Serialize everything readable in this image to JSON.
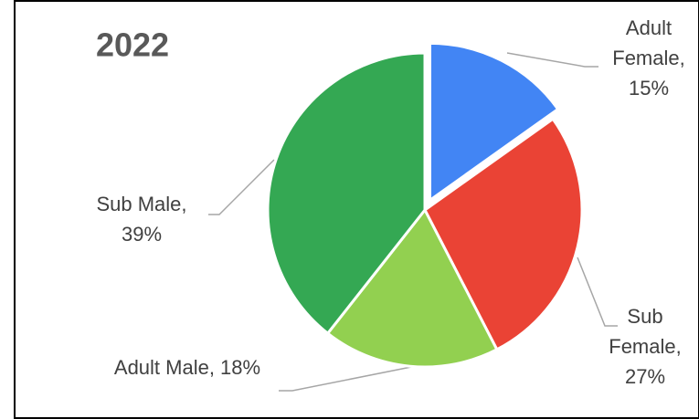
{
  "chart_data": {
    "type": "pie",
    "title": "2022",
    "categories": [
      "Adult Female",
      "Sub Female",
      "Adult Male",
      "Sub Male"
    ],
    "values": [
      15,
      27,
      18,
      39
    ],
    "value_labels": [
      "Adult Female, 15%",
      "Sub Female, 27%",
      "Adult Male, 18%",
      "Sub Male, 39%"
    ],
    "colors": [
      "#4285f4",
      "#ea4335",
      "#92d050",
      "#34a853"
    ],
    "exploded": [
      0
    ]
  }
}
